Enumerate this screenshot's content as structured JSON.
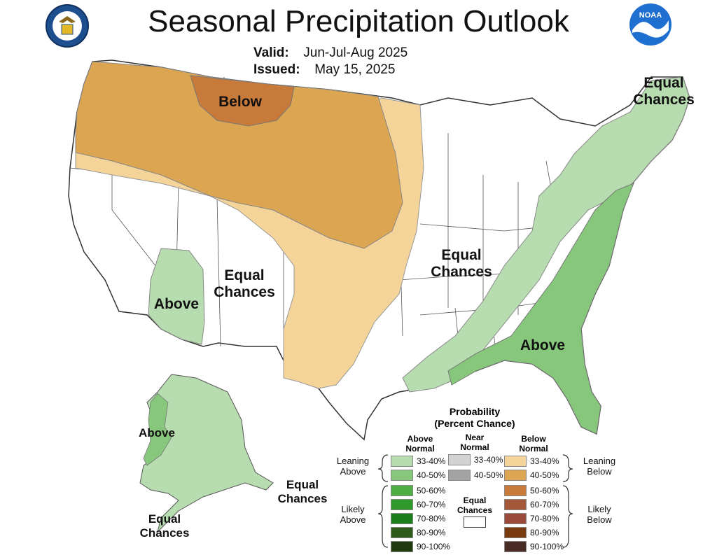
{
  "header": {
    "title": "Seasonal Precipitation Outlook",
    "valid_label": "Valid:",
    "valid_value": "Jun-Jul-Aug 2025",
    "issued_label": "Issued:",
    "issued_value": "May 15, 2025",
    "left_logo": "doc-seal-icon",
    "right_logo": "noaa-logo-icon",
    "logo_text": "NOAA"
  },
  "map_labels": {
    "below": "Below",
    "equal_ne_1": "Equal",
    "equal_ne_2": "Chances",
    "equal_center_1": "Equal",
    "equal_center_2": "Chances",
    "equal_sw_1": "Equal",
    "equal_sw_2": "Chances",
    "above_sw": "Above",
    "above_se": "Above",
    "above_ak": "Above",
    "equal_ak_se_1": "Equal",
    "equal_ak_se_2": "Chances",
    "equal_ak_s_1": "Equal",
    "equal_ak_s_2": "Chances"
  },
  "colors": {
    "above_33_40": "#b7dcb0",
    "above_40_50": "#86c77b",
    "above_50_60": "#4fae43",
    "above_60_70": "#2f9a2a",
    "above_70_80": "#1b7d1b",
    "above_80_90": "#2e5a1a",
    "above_90_100": "#203a10",
    "near_33_40": "#d3d3d3",
    "near_40_50": "#a3a3a3",
    "below_33_40": "#f5d49a",
    "below_40_50": "#dba552",
    "below_50_60": "#c87a3a",
    "below_60_70": "#a5573a",
    "below_70_80": "#9a4a3a",
    "below_80_90": "#7a3a10",
    "below_90_100": "#4a2a25"
  },
  "legend": {
    "title_1": "Probability",
    "title_2": "(Percent Chance)",
    "col_above_1": "Above",
    "col_above_2": "Normal",
    "col_near_1": "Near",
    "col_near_2": "Normal",
    "col_below_1": "Below",
    "col_below_2": "Normal",
    "leaning_above_1": "Leaning",
    "leaning_above_2": "Above",
    "likely_above_1": "Likely",
    "likely_above_2": "Above",
    "leaning_below_1": "Leaning",
    "leaning_below_2": "Below",
    "likely_below_1": "Likely",
    "likely_below_2": "Below",
    "equal_1": "Equal",
    "equal_2": "Chances",
    "above_ranges": [
      "33-40%",
      "40-50%",
      "50-60%",
      "60-70%",
      "70-80%",
      "80-90%",
      "90-100%"
    ],
    "near_ranges": [
      "33-40%",
      "40-50%"
    ],
    "below_ranges": [
      "33-40%",
      "40-50%",
      "50-60%",
      "60-70%",
      "70-80%",
      "80-90%",
      "90-100%"
    ]
  }
}
